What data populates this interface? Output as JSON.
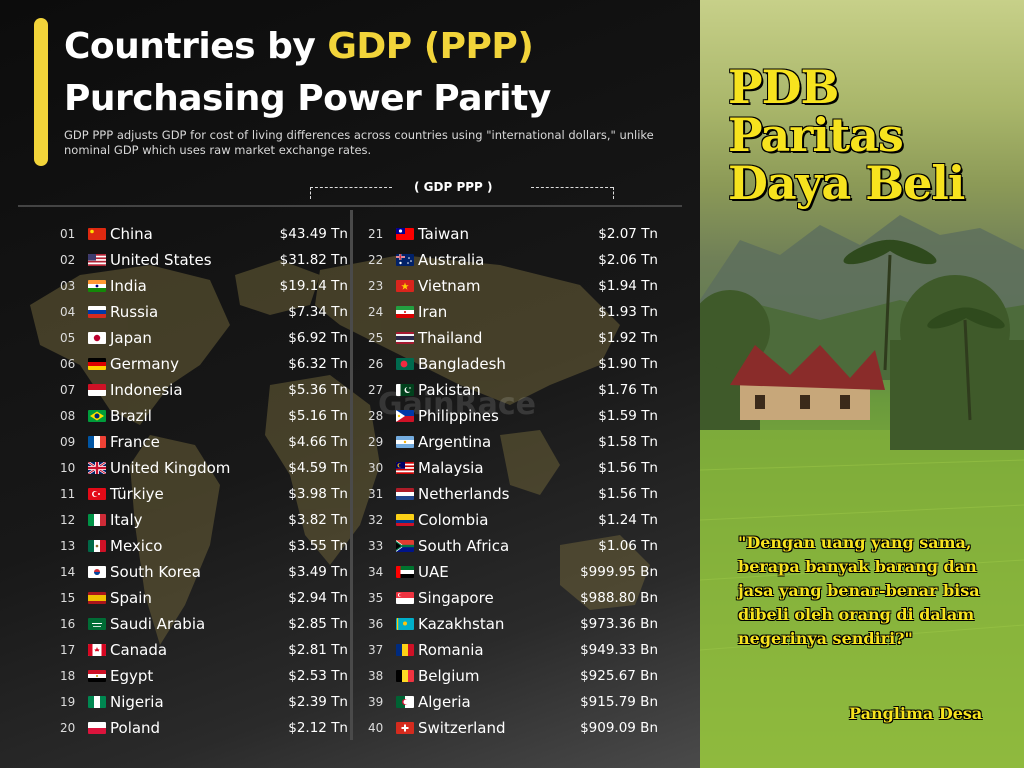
{
  "header": {
    "title_line1_prefix": "Countries by ",
    "title_line1_highlight": "GDP (PPP)",
    "title_line2": "Purchasing Power Parity",
    "subtitle": "GDP PPP adjusts GDP for cost of living differences across countries using \"international dollars,\" unlike nominal GDP which uses raw market exchange rates.",
    "column_label": "( GDP PPP )",
    "watermark": "GainRace"
  },
  "ranking": [
    {
      "rank": "01",
      "name": "China",
      "value": "$43.49 Tn",
      "flag": "cn"
    },
    {
      "rank": "02",
      "name": "United States",
      "value": "$31.82 Tn",
      "flag": "us"
    },
    {
      "rank": "03",
      "name": "India",
      "value": "$19.14 Tn",
      "flag": "in"
    },
    {
      "rank": "04",
      "name": "Russia",
      "value": "$7.34 Tn",
      "flag": "ru"
    },
    {
      "rank": "05",
      "name": "Japan",
      "value": "$6.92 Tn",
      "flag": "jp"
    },
    {
      "rank": "06",
      "name": "Germany",
      "value": "$6.32 Tn",
      "flag": "de"
    },
    {
      "rank": "07",
      "name": "Indonesia",
      "value": "$5.36 Tn",
      "flag": "id"
    },
    {
      "rank": "08",
      "name": "Brazil",
      "value": "$5.16 Tn",
      "flag": "br"
    },
    {
      "rank": "09",
      "name": "France",
      "value": "$4.66 Tn",
      "flag": "fr"
    },
    {
      "rank": "10",
      "name": "United Kingdom",
      "value": "$4.59 Tn",
      "flag": "gb"
    },
    {
      "rank": "11",
      "name": "Türkiye",
      "value": "$3.98 Tn",
      "flag": "tr"
    },
    {
      "rank": "12",
      "name": "Italy",
      "value": "$3.82 Tn",
      "flag": "it"
    },
    {
      "rank": "13",
      "name": "Mexico",
      "value": "$3.55 Tn",
      "flag": "mx"
    },
    {
      "rank": "14",
      "name": "South Korea",
      "value": "$3.49 Tn",
      "flag": "kr"
    },
    {
      "rank": "15",
      "name": "Spain",
      "value": "$2.94 Tn",
      "flag": "es"
    },
    {
      "rank": "16",
      "name": "Saudi Arabia",
      "value": "$2.85 Tn",
      "flag": "sa"
    },
    {
      "rank": "17",
      "name": "Canada",
      "value": "$2.81 Tn",
      "flag": "ca"
    },
    {
      "rank": "18",
      "name": "Egypt",
      "value": "$2.53 Tn",
      "flag": "eg"
    },
    {
      "rank": "19",
      "name": "Nigeria",
      "value": "$2.39 Tn",
      "flag": "ng"
    },
    {
      "rank": "20",
      "name": "Poland",
      "value": "$2.12 Tn",
      "flag": "pl"
    },
    {
      "rank": "21",
      "name": "Taiwan",
      "value": "$2.07 Tn",
      "flag": "tw"
    },
    {
      "rank": "22",
      "name": "Australia",
      "value": "$2.06 Tn",
      "flag": "au"
    },
    {
      "rank": "23",
      "name": "Vietnam",
      "value": "$1.94 Tn",
      "flag": "vn"
    },
    {
      "rank": "24",
      "name": "Iran",
      "value": "$1.93 Tn",
      "flag": "ir"
    },
    {
      "rank": "25",
      "name": "Thailand",
      "value": "$1.92 Tn",
      "flag": "th"
    },
    {
      "rank": "26",
      "name": "Bangladesh",
      "value": "$1.90 Tn",
      "flag": "bd"
    },
    {
      "rank": "27",
      "name": "Pakistan",
      "value": "$1.76 Tn",
      "flag": "pk"
    },
    {
      "rank": "28",
      "name": "Philippines",
      "value": "$1.59 Tn",
      "flag": "ph"
    },
    {
      "rank": "29",
      "name": "Argentina",
      "value": "$1.58 Tn",
      "flag": "ar"
    },
    {
      "rank": "30",
      "name": "Malaysia",
      "value": "$1.56 Tn",
      "flag": "my"
    },
    {
      "rank": "31",
      "name": "Netherlands",
      "value": "$1.56 Tn",
      "flag": "nl"
    },
    {
      "rank": "32",
      "name": "Colombia",
      "value": "$1.24 Tn",
      "flag": "co"
    },
    {
      "rank": "33",
      "name": "South Africa",
      "value": "$1.06 Tn",
      "flag": "za"
    },
    {
      "rank": "34",
      "name": "UAE",
      "value": "$999.95 Bn",
      "flag": "ae"
    },
    {
      "rank": "35",
      "name": "Singapore",
      "value": "$988.80 Bn",
      "flag": "sg"
    },
    {
      "rank": "36",
      "name": "Kazakhstan",
      "value": "$973.36 Bn",
      "flag": "kz"
    },
    {
      "rank": "37",
      "name": "Romania",
      "value": "$949.33 Bn",
      "flag": "ro"
    },
    {
      "rank": "38",
      "name": "Belgium",
      "value": "$925.67 Bn",
      "flag": "be"
    },
    {
      "rank": "39",
      "name": "Algeria",
      "value": "$915.79 Bn",
      "flag": "dz"
    },
    {
      "rank": "40",
      "name": "Switzerland",
      "value": "$909.09 Bn",
      "flag": "ch"
    }
  ],
  "overlay": {
    "line1": "PDB",
    "line2": "Paritas",
    "line3": "Daya Beli",
    "quote": "\"Dengan uang yang sama, berapa banyak barang dan jasa yang benar-benar bisa dibeli oleh orang di dalam negerinya sendiri?\"",
    "author": "Panglima Desa"
  },
  "colors": {
    "accent_yellow": "#f2d43a",
    "overlay_yellow": "#f7e31e",
    "background": "#111111"
  }
}
